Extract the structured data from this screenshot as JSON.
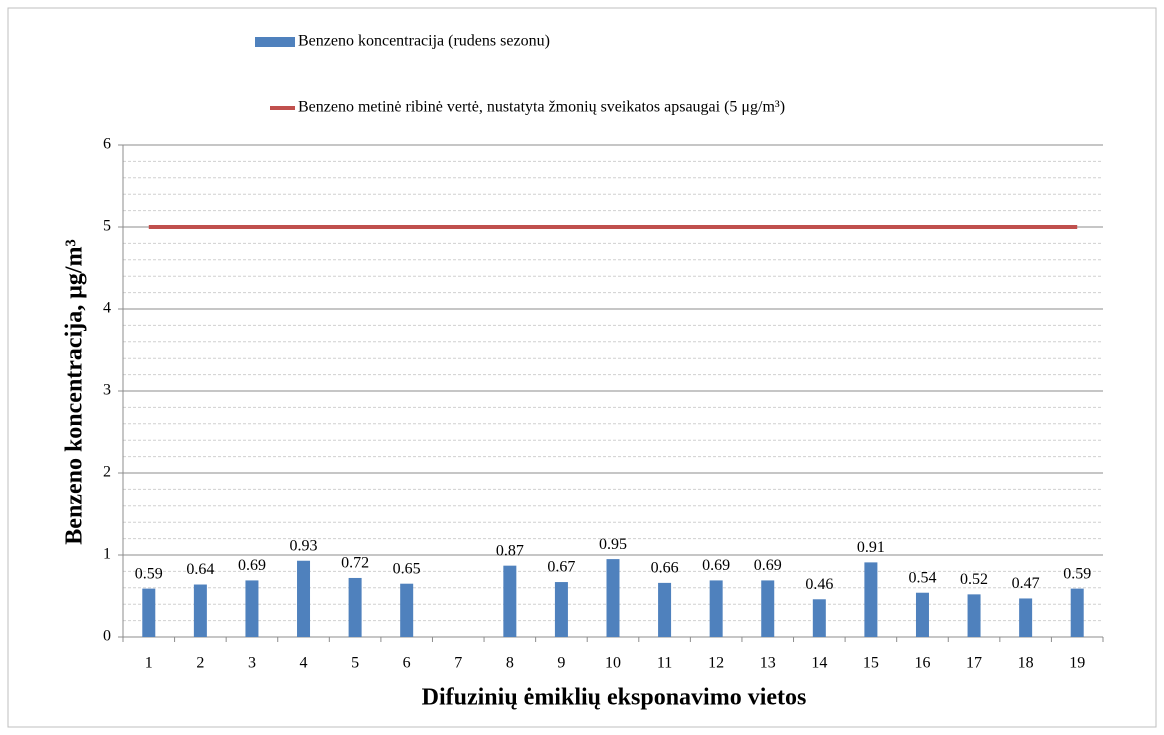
{
  "chart_data": {
    "type": "bar",
    "x_label": "Difuzinių ėmiklių eksponavimo vietos",
    "y_label": "Benzeno koncentracija, μg/m³",
    "categories": [
      "1",
      "2",
      "3",
      "4",
      "5",
      "6",
      "7",
      "8",
      "9",
      "10",
      "11",
      "12",
      "13",
      "14",
      "15",
      "16",
      "17",
      "18",
      "19"
    ],
    "series": [
      {
        "name": "Benzeno koncentracija (rudens sezonu)",
        "type": "bar",
        "color": "#4f81bd",
        "values": [
          0.59,
          0.64,
          0.69,
          0.93,
          0.72,
          0.65,
          null,
          0.87,
          0.67,
          0.95,
          0.66,
          0.69,
          0.69,
          0.46,
          0.91,
          0.54,
          0.52,
          0.47,
          0.59
        ]
      },
      {
        "name": "Benzeno metinė ribinė vertė, nustatyta žmonių sveikatos apsaugai (5 μg/m³)",
        "type": "line",
        "color": "#c0504d",
        "values": [
          5,
          5,
          5,
          5,
          5,
          5,
          5,
          5,
          5,
          5,
          5,
          5,
          5,
          5,
          5,
          5,
          5,
          5,
          5
        ]
      }
    ],
    "ylim": [
      0,
      6
    ],
    "yticks": [
      0,
      1,
      2,
      3,
      4,
      5,
      6
    ],
    "grid": true,
    "minor_grid": true,
    "legend": "top"
  }
}
